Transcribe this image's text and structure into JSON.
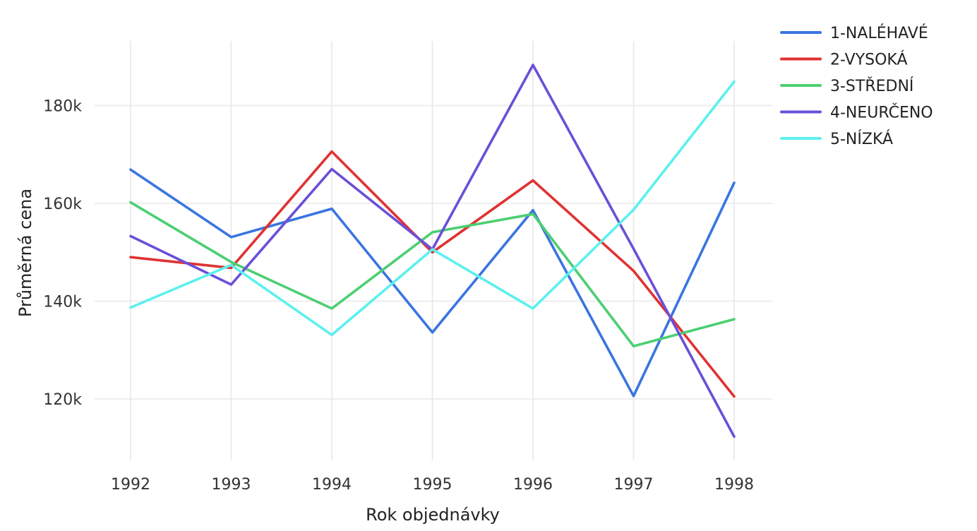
{
  "chart_data": {
    "type": "line",
    "xlabel": "Rok objednávky",
    "ylabel": "Průměrná cena",
    "x": [
      1992,
      1993,
      1994,
      1995,
      1996,
      1997,
      1998
    ],
    "x_tick_labels": [
      "1992",
      "1993",
      "1994",
      "1995",
      "1996",
      "1997",
      "1998"
    ],
    "y_ticks": [
      120000,
      140000,
      160000,
      180000
    ],
    "y_tick_labels": [
      "120k",
      "140k",
      "160k",
      "180k"
    ],
    "ylim": [
      108000,
      191000
    ],
    "grid": true,
    "legend_position": "top-right",
    "series": [
      {
        "name": "1-NALÉHAVÉ",
        "color": "#3a75e0",
        "values": [
          166900,
          153100,
          158900,
          133600,
          158600,
          120600,
          164200
        ]
      },
      {
        "name": "2-VYSOKÁ",
        "color": "#e03232",
        "values": [
          149000,
          146800,
          170600,
          150000,
          164700,
          146200,
          120500
        ]
      },
      {
        "name": "3-STŘEDNÍ",
        "color": "#4ccf73",
        "values": [
          160200,
          148000,
          138500,
          154100,
          157800,
          130800,
          136300
        ]
      },
      {
        "name": "4-NEURČENO",
        "color": "#6b4fd8",
        "values": [
          153300,
          143400,
          167000,
          150600,
          188300,
          150700,
          112300
        ]
      },
      {
        "name": "5-NÍZKÁ",
        "color": "#5cf0ee",
        "values": [
          138700,
          147400,
          133100,
          150600,
          138500,
          158700,
          184900
        ]
      }
    ]
  }
}
